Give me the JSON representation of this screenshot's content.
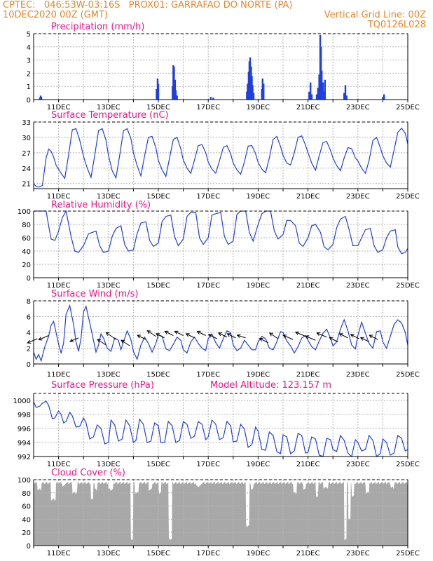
{
  "header": {
    "line1_left": "CPTEC:   046:53W-03:16S   PROX01: GARRAFAO DO NORTE (PA)",
    "line2_left": "10DEC2020 00Z (GMT)",
    "line2_right": "Vertical Grid Line: 00Z",
    "line3_right": "TQ0126L028"
  },
  "colors": {
    "header": "#e8862a",
    "title": "#e8168a",
    "series": "#1f3fe0",
    "cloud": "#a8a8a8",
    "grid": "#b4b4b4"
  },
  "x_tick_labels": [
    "11DEC",
    "13DEC",
    "15DEC",
    "17DEC",
    "19DEC",
    "21DEC",
    "23DEC",
    "25DEC"
  ],
  "chart_data": [
    {
      "id": "precip",
      "type": "bar",
      "title": "Precipitation (mm/h)",
      "ylim": [
        0,
        5
      ],
      "yticks": [
        0,
        1,
        2,
        3,
        4,
        5
      ],
      "x_unit": "days since 10DEC2020 00Z",
      "points": [
        [
          0.25,
          0.15
        ],
        [
          0.28,
          0.3
        ],
        [
          0.31,
          0.2
        ],
        [
          4.93,
          0.8
        ],
        [
          4.97,
          1.6
        ],
        [
          5.0,
          1.2
        ],
        [
          5.57,
          1.0
        ],
        [
          5.6,
          2.6
        ],
        [
          5.63,
          2.5
        ],
        [
          5.67,
          1.5
        ],
        [
          5.7,
          0.7
        ],
        [
          5.75,
          0.3
        ],
        [
          7.1,
          0.2
        ],
        [
          7.2,
          0.15
        ],
        [
          8.55,
          0.6
        ],
        [
          8.58,
          1.2
        ],
        [
          8.62,
          2.1
        ],
        [
          8.65,
          2.9
        ],
        [
          8.68,
          3.2
        ],
        [
          8.72,
          2.5
        ],
        [
          8.75,
          1.8
        ],
        [
          8.78,
          1.1
        ],
        [
          8.82,
          0.5
        ],
        [
          9.15,
          0.8
        ],
        [
          9.18,
          1.6
        ],
        [
          9.22,
          1.2
        ],
        [
          11.05,
          0.6
        ],
        [
          11.1,
          1.3
        ],
        [
          11.15,
          0.4
        ],
        [
          11.35,
          0.4
        ],
        [
          11.4,
          0.9
        ],
        [
          11.45,
          1.9
        ],
        [
          11.49,
          4.9
        ],
        [
          11.52,
          4.0
        ],
        [
          11.55,
          2.2
        ],
        [
          11.6,
          1.3
        ],
        [
          11.65,
          0.6
        ],
        [
          11.68,
          1.5
        ],
        [
          12.45,
          0.5
        ],
        [
          12.5,
          1.1
        ],
        [
          12.55,
          0.3
        ],
        [
          14.0,
          0.2
        ],
        [
          14.05,
          0.4
        ]
      ]
    },
    {
      "id": "temp",
      "type": "line",
      "title": "Surface Temperature (nC)",
      "ylim": [
        20,
        33
      ],
      "yticks": [
        21,
        24,
        27,
        30,
        33
      ],
      "ytick_labels": [
        "21",
        "24",
        "27",
        "30",
        "33"
      ],
      "x": [
        0,
        0.1,
        0.2,
        0.35,
        0.5,
        0.6,
        0.7,
        0.8,
        0.9,
        1.0,
        1.1,
        1.25,
        1.4,
        1.55,
        1.7,
        1.85,
        2.0,
        2.15,
        2.3,
        2.45,
        2.6,
        2.75,
        2.9,
        3.0,
        3.15,
        3.3,
        3.45,
        3.6,
        3.75,
        3.9,
        4.0,
        4.15,
        4.3,
        4.45,
        4.6,
        4.75,
        4.9,
        5.0,
        5.15,
        5.3,
        5.45,
        5.6,
        5.75,
        5.9,
        6.0,
        6.15,
        6.3,
        6.45,
        6.6,
        6.75,
        6.9,
        7.0,
        7.15,
        7.3,
        7.45,
        7.6,
        7.75,
        7.9,
        8.0,
        8.15,
        8.3,
        8.45,
        8.6,
        8.75,
        8.9,
        9.0,
        9.15,
        9.3,
        9.45,
        9.6,
        9.75,
        9.9,
        10.0,
        10.15,
        10.3,
        10.45,
        10.6,
        10.75,
        10.9,
        11.0,
        11.15,
        11.3,
        11.45,
        11.6,
        11.75,
        11.9,
        12.0,
        12.15,
        12.3,
        12.45,
        12.6,
        12.75,
        12.9,
        13.0,
        13.15,
        13.3,
        13.45,
        13.6,
        13.75,
        13.9,
        14.0,
        14.15,
        14.3,
        14.45,
        14.6,
        14.75,
        14.9,
        15.0
      ],
      "y": [
        21,
        20.4,
        20.3,
        20.6,
        26.0,
        27.7,
        27.3,
        26.2,
        24.6,
        23.8,
        23.0,
        22.0,
        26.5,
        31.5,
        31.7,
        29.4,
        26.3,
        24.0,
        22.2,
        26.5,
        31.3,
        31.7,
        29.5,
        26.5,
        23.5,
        22.1,
        26.5,
        31.3,
        31.7,
        29.8,
        27.0,
        24.5,
        22.5,
        26.4,
        30.0,
        30.2,
        28.0,
        25.5,
        23.7,
        22.4,
        26.0,
        29.6,
        30.0,
        27.8,
        25.6,
        24.0,
        23.0,
        25.6,
        28.4,
        28.6,
        27.0,
        25.2,
        23.8,
        23.0,
        25.4,
        28.0,
        28.4,
        26.8,
        25.0,
        23.7,
        22.8,
        25.2,
        28.3,
        28.4,
        26.8,
        25.1,
        23.8,
        23.1,
        26.0,
        29.6,
        30.2,
        28.2,
        26.5,
        25.0,
        24.6,
        27.0,
        30.0,
        30.3,
        28.5,
        27.0,
        25.0,
        23.6,
        26.4,
        29.0,
        29.2,
        27.5,
        26.0,
        24.5,
        23.5,
        26.0,
        28.0,
        27.8,
        26.0,
        25.4,
        24.0,
        23.0,
        25.5,
        29.4,
        30.0,
        28.0,
        26.4,
        25.0,
        24.2,
        27.5,
        31.0,
        31.8,
        30.8,
        28.7
      ]
    },
    {
      "id": "rh",
      "type": "line",
      "title": "Relative Humidity (%)",
      "ylim": [
        0,
        100
      ],
      "yticks": [
        0,
        20,
        40,
        60,
        80,
        100
      ],
      "x": [
        0,
        0.25,
        0.5,
        0.6,
        0.7,
        0.85,
        1.0,
        1.15,
        1.3,
        1.5,
        1.65,
        1.8,
        2.0,
        2.2,
        2.35,
        2.5,
        2.65,
        2.8,
        3.0,
        3.15,
        3.3,
        3.5,
        3.65,
        3.8,
        4.0,
        4.15,
        4.3,
        4.5,
        4.65,
        4.8,
        5.0,
        5.15,
        5.3,
        5.5,
        5.65,
        5.8,
        6.0,
        6.15,
        6.3,
        6.5,
        6.65,
        6.8,
        7.0,
        7.15,
        7.3,
        7.5,
        7.65,
        7.8,
        8.0,
        8.15,
        8.3,
        8.5,
        8.65,
        8.8,
        9.0,
        9.15,
        9.3,
        9.5,
        9.65,
        9.8,
        10.0,
        10.15,
        10.3,
        10.5,
        10.65,
        10.8,
        11.0,
        11.15,
        11.3,
        11.5,
        11.65,
        11.8,
        12.0,
        12.15,
        12.3,
        12.5,
        12.65,
        12.8,
        13.0,
        13.15,
        13.3,
        13.5,
        13.65,
        13.8,
        14.0,
        14.15,
        14.3,
        14.5,
        14.6,
        14.75,
        14.9,
        15.0
      ],
      "y": [
        100,
        100,
        100,
        78,
        58,
        56,
        70,
        90,
        100,
        62,
        40,
        38,
        48,
        66,
        68,
        70,
        48,
        38,
        40,
        62,
        74,
        78,
        50,
        40,
        42,
        66,
        82,
        84,
        56,
        47,
        52,
        84,
        92,
        94,
        62,
        48,
        58,
        92,
        98,
        98,
        60,
        50,
        60,
        94,
        96,
        98,
        62,
        50,
        55,
        95,
        100,
        100,
        68,
        55,
        80,
        96,
        100,
        100,
        70,
        58,
        65,
        86,
        86,
        78,
        52,
        47,
        60,
        78,
        80,
        68,
        46,
        42,
        50,
        75,
        88,
        92,
        72,
        48,
        48,
        60,
        72,
        74,
        48,
        38,
        42,
        60,
        70,
        72,
        46,
        36,
        38,
        44
      ]
    },
    {
      "id": "wind",
      "type": "line",
      "title": "Surface Wind (m/s)",
      "ylim": [
        0,
        8
      ],
      "yticks": [
        0,
        2,
        4,
        6,
        8
      ],
      "x": [
        0,
        0.1,
        0.2,
        0.3,
        0.45,
        0.6,
        0.7,
        0.8,
        0.9,
        1.0,
        1.1,
        1.2,
        1.3,
        1.45,
        1.6,
        1.7,
        1.8,
        1.9,
        2.0,
        2.1,
        2.25,
        2.4,
        2.5,
        2.6,
        2.7,
        2.8,
        2.95,
        3.1,
        3.25,
        3.4,
        3.5,
        3.6,
        3.75,
        3.9,
        4.0,
        4.15,
        4.3,
        4.45,
        4.6,
        4.75,
        4.9,
        5.0,
        5.15,
        5.3,
        5.45,
        5.6,
        5.75,
        5.9,
        6.0,
        6.15,
        6.3,
        6.45,
        6.6,
        6.75,
        6.9,
        7.0,
        7.15,
        7.3,
        7.45,
        7.6,
        7.75,
        7.9,
        8.0,
        8.15,
        8.3,
        8.45,
        8.6,
        8.75,
        8.9,
        9.0,
        9.15,
        9.3,
        9.45,
        9.6,
        9.75,
        9.9,
        10.0,
        10.15,
        10.3,
        10.45,
        10.6,
        10.75,
        10.9,
        11.0,
        11.15,
        11.3,
        11.45,
        11.6,
        11.75,
        11.9,
        12.0,
        12.15,
        12.3,
        12.45,
        12.6,
        12.75,
        12.9,
        13.0,
        13.15,
        13.3,
        13.45,
        13.6,
        13.75,
        13.9,
        14.0,
        14.15,
        14.3,
        14.45,
        14.6,
        14.75,
        14.9,
        15.0
      ],
      "y": [
        1.5,
        0.6,
        1.2,
        0.4,
        2.2,
        3.5,
        4.9,
        5.4,
        4.0,
        2.5,
        1.4,
        2.6,
        6.3,
        7.4,
        5.0,
        2.8,
        1.6,
        3.2,
        6.6,
        7.3,
        5.2,
        3.0,
        1.5,
        2.4,
        3.8,
        3.3,
        2.0,
        1.6,
        3.3,
        3.0,
        1.8,
        2.8,
        4.2,
        3.1,
        1.6,
        0.6,
        2.4,
        3.4,
        2.6,
        1.5,
        2.6,
        3.7,
        3.5,
        1.9,
        1.7,
        2.5,
        3.4,
        3.0,
        1.8,
        1.4,
        2.8,
        3.4,
        2.6,
        2.0,
        1.7,
        3.2,
        3.8,
        2.7,
        2.0,
        3.2,
        4.2,
        4.0,
        2.4,
        1.7,
        2.0,
        3.0,
        2.4,
        1.8,
        1.8,
        2.8,
        3.5,
        3.2,
        2.0,
        1.8,
        2.8,
        4.1,
        4.0,
        2.9,
        2.3,
        1.4,
        2.2,
        3.3,
        3.6,
        3.0,
        2.2,
        1.8,
        2.9,
        3.9,
        4.4,
        3.3,
        2.3,
        2.8,
        4.4,
        5.6,
        4.2,
        2.4,
        1.9,
        3.6,
        5.3,
        3.9,
        2.6,
        2.0,
        4.1,
        4.2,
        2.8,
        2.0,
        3.5,
        5.0,
        5.6,
        5.2,
        4.0,
        2.4
      ],
      "barb_x": [
        0.15,
        0.6,
        1.8,
        2.9,
        3.3,
        3.85,
        4.5,
        4.9,
        5.25,
        5.6,
        6.0,
        6.45,
        6.9,
        7.35,
        7.75,
        8.1,
        8.5,
        9.4,
        9.8,
        10.4,
        10.9,
        11.3,
        11.75,
        12.2,
        12.6,
        13.05,
        13.45,
        13.8
      ],
      "barb_y": [
        3.2,
        3.6,
        3.3,
        2.4,
        3.1,
        2.3,
        3.1,
        3.5,
        3.3,
        3.6,
        3.6,
        3.3,
        3.6,
        3.2,
        3.4,
        3.3,
        3.3,
        2.7,
        3.2,
        3.1,
        3.5,
        3.0,
        3.4,
        2.8,
        3.3,
        3.2,
        2.8,
        3.1
      ],
      "barb_dx": [
        14,
        14,
        12,
        12,
        14,
        12,
        12,
        12,
        12,
        12,
        12,
        12,
        12,
        12,
        12,
        12,
        12,
        12,
        12,
        14,
        14,
        14,
        14,
        12,
        12,
        12,
        12,
        12
      ],
      "barb_dy": [
        -6,
        -6,
        -5,
        8,
        10,
        8,
        6,
        8,
        6,
        6,
        6,
        6,
        6,
        6,
        6,
        6,
        4,
        6,
        8,
        6,
        6,
        6,
        6,
        6,
        6,
        6,
        6,
        6
      ]
    },
    {
      "id": "pres",
      "type": "line",
      "title": "Surface Pressure (hPa)",
      "annotation": "Model Altitude: 123.157 m",
      "ylim": [
        992,
        1001
      ],
      "yticks": [
        992,
        994,
        996,
        998,
        1000
      ],
      "x": [
        0,
        0.1,
        0.25,
        0.35,
        0.5,
        0.6,
        0.75,
        0.85,
        1.0,
        1.1,
        1.2,
        1.3,
        1.45,
        1.55,
        1.7,
        1.85,
        2.0,
        2.1,
        2.25,
        2.4,
        2.55,
        2.7,
        2.85,
        3.0,
        3.1,
        3.25,
        3.4,
        3.55,
        3.7,
        3.85,
        4.0,
        4.1,
        4.25,
        4.4,
        4.55,
        4.7,
        4.85,
        5.0,
        5.1,
        5.25,
        5.4,
        5.55,
        5.7,
        5.85,
        6.0,
        6.15,
        6.3,
        6.45,
        6.6,
        6.75,
        6.9,
        7.0,
        7.15,
        7.3,
        7.45,
        7.6,
        7.75,
        7.9,
        8.0,
        8.15,
        8.3,
        8.45,
        8.6,
        8.75,
        8.9,
        9.0,
        9.15,
        9.3,
        9.45,
        9.6,
        9.75,
        9.9,
        10.0,
        10.15,
        10.3,
        10.45,
        10.6,
        10.75,
        10.9,
        11.0,
        11.15,
        11.3,
        11.45,
        11.6,
        11.75,
        11.9,
        12.0,
        12.15,
        12.3,
        12.45,
        12.6,
        12.75,
        12.9,
        13.0,
        13.15,
        13.3,
        13.45,
        13.6,
        13.75,
        13.9,
        14.0,
        14.15,
        14.3,
        14.45,
        14.6,
        14.75,
        14.9,
        15.0
      ],
      "y": [
        999.8,
        999.0,
        999.2,
        999.6,
        999.9,
        999.3,
        997.4,
        997.5,
        998.5,
        998.0,
        996.8,
        997.0,
        998.3,
        997.8,
        996.2,
        996.3,
        997.5,
        996.8,
        994.5,
        994.8,
        996.5,
        996.0,
        993.8,
        994.0,
        997.2,
        996.5,
        994.2,
        994.5,
        997.2,
        996.4,
        994.0,
        994.3,
        997.3,
        996.6,
        994.0,
        994.2,
        996.8,
        996.4,
        994.0,
        994.0,
        997.0,
        996.4,
        994.0,
        994.3,
        997.0,
        996.6,
        994.6,
        994.9,
        997.0,
        996.6,
        994.4,
        994.8,
        997.2,
        996.6,
        994.4,
        994.7,
        997.0,
        996.4,
        994.1,
        994.2,
        996.6,
        995.9,
        993.3,
        993.7,
        996.2,
        995.6,
        993.0,
        992.9,
        995.5,
        995.0,
        992.7,
        992.4,
        995.1,
        994.8,
        992.4,
        992.8,
        995.3,
        995.0,
        992.5,
        992.6,
        994.8,
        994.5,
        992.2,
        992.0,
        994.6,
        994.4,
        993.0,
        992.7,
        995.0,
        994.3,
        992.5,
        992.0,
        994.4,
        994.0,
        992.8,
        993.0,
        995.0,
        994.3,
        992.0,
        992.4,
        994.5,
        994.0,
        992.2,
        992.5,
        995.0,
        994.6,
        992.8,
        993.0
      ]
    },
    {
      "id": "cloud",
      "type": "bar",
      "title": "Cloud Cover (%)",
      "ylim": [
        0,
        100
      ],
      "yticks": [
        0,
        20,
        40,
        60,
        80,
        100
      ],
      "level": 95,
      "dips": [
        [
          0.15,
          0.3,
          85
        ],
        [
          0.7,
          0.9,
          70
        ],
        [
          1.15,
          1.25,
          90
        ],
        [
          1.55,
          1.75,
          80
        ],
        [
          2.3,
          2.4,
          70
        ],
        [
          2.45,
          2.55,
          85
        ],
        [
          3.0,
          3.2,
          85
        ],
        [
          3.9,
          4.0,
          10
        ],
        [
          4.05,
          4.2,
          80
        ],
        [
          4.6,
          4.75,
          85
        ],
        [
          5.0,
          5.1,
          80
        ],
        [
          5.4,
          5.55,
          10
        ],
        [
          6.5,
          6.7,
          90
        ],
        [
          8.5,
          8.65,
          30
        ],
        [
          8.7,
          8.8,
          85
        ],
        [
          10.4,
          10.55,
          80
        ],
        [
          10.8,
          10.9,
          85
        ],
        [
          11.3,
          11.4,
          75
        ],
        [
          11.6,
          11.8,
          88
        ],
        [
          12.45,
          12.55,
          10
        ],
        [
          12.6,
          12.7,
          40
        ],
        [
          12.75,
          12.85,
          75
        ],
        [
          13.3,
          13.45,
          80
        ],
        [
          14.3,
          14.45,
          88
        ]
      ]
    }
  ]
}
